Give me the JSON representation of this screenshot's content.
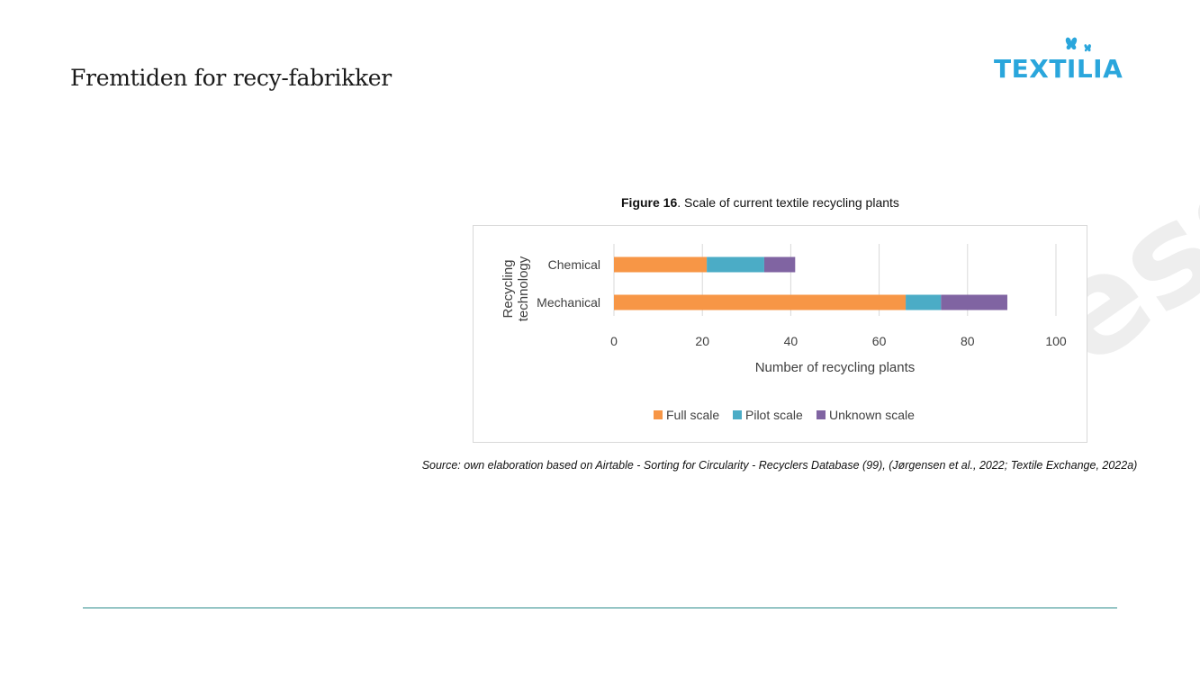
{
  "slide": {
    "title": "Fremtiden for recy-fabrikker"
  },
  "logo": {
    "text": "TEXTILIA",
    "color": "#2aa6dc",
    "icon": "butterfly-icon"
  },
  "figure": {
    "label": "Figure 16",
    "caption": ". Scale of current textile recycling plants",
    "source": "Source: own elaboration based on Airtable - Sorting for Circularity - Recyclers Database (99), (Jørgensen et al., 2022; Textile Exchange, 2022a)"
  },
  "chart_data": {
    "type": "bar",
    "orientation": "horizontal",
    "stacked": true,
    "title": "",
    "categories": [
      "Chemical",
      "Mechanical"
    ],
    "series": [
      {
        "name": "Full scale",
        "color": "#f79646",
        "values": [
          21,
          66
        ]
      },
      {
        "name": "Pilot scale",
        "color": "#4bacc6",
        "values": [
          13,
          8
        ]
      },
      {
        "name": "Unknown scale",
        "color": "#8064a2",
        "values": [
          7,
          15
        ]
      }
    ],
    "xlabel": "Number of recycling plants",
    "ylabel": "Recycling technology",
    "xlim": [
      0,
      100
    ],
    "xticks": [
      0,
      20,
      40,
      60,
      80,
      100
    ],
    "grid": true,
    "legend_position": "bottom"
  }
}
